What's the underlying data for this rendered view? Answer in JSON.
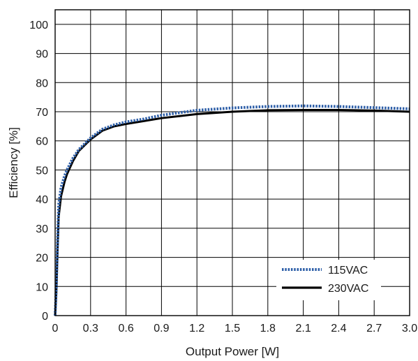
{
  "chart_data": {
    "type": "line",
    "xlabel": "Output Power [W]",
    "ylabel": "Efficiency [%]",
    "xlim": [
      0,
      3.0
    ],
    "ylim": [
      0,
      105
    ],
    "x_ticks": [
      "0",
      "0.3",
      "0.6",
      "0.9",
      "1.2",
      "1.5",
      "1.8",
      "2.1",
      "2.4",
      "2.7",
      "3.0"
    ],
    "y_ticks": [
      "0",
      "10",
      "20",
      "30",
      "40",
      "50",
      "60",
      "70",
      "80",
      "90",
      "100"
    ],
    "grid": true,
    "legend_position": "bottom-right",
    "series": [
      {
        "name": "115VAC",
        "color": "#2e5fa8",
        "style": "dotted",
        "points": [
          [
            0,
            0
          ],
          [
            0.01,
            10
          ],
          [
            0.02,
            25
          ],
          [
            0.03,
            38
          ],
          [
            0.05,
            44
          ],
          [
            0.08,
            48
          ],
          [
            0.1,
            50
          ],
          [
            0.15,
            54
          ],
          [
            0.2,
            57
          ],
          [
            0.3,
            61
          ],
          [
            0.4,
            64
          ],
          [
            0.5,
            65.5
          ],
          [
            0.6,
            66.5
          ],
          [
            0.75,
            67.5
          ],
          [
            0.9,
            68.8
          ],
          [
            1.2,
            70.5
          ],
          [
            1.5,
            71.3
          ],
          [
            1.8,
            71.8
          ],
          [
            2.1,
            72
          ],
          [
            2.4,
            71.8
          ],
          [
            2.7,
            71.4
          ],
          [
            3.0,
            71
          ]
        ]
      },
      {
        "name": "230VAC",
        "color": "#000000",
        "style": "solid",
        "points": [
          [
            0,
            0
          ],
          [
            0.01,
            8
          ],
          [
            0.02,
            22
          ],
          [
            0.03,
            34
          ],
          [
            0.05,
            41
          ],
          [
            0.08,
            46
          ],
          [
            0.1,
            48.5
          ],
          [
            0.15,
            53
          ],
          [
            0.2,
            56.5
          ],
          [
            0.3,
            60.5
          ],
          [
            0.4,
            63.5
          ],
          [
            0.5,
            65
          ],
          [
            0.6,
            65.8
          ],
          [
            0.75,
            66.8
          ],
          [
            0.9,
            67.8
          ],
          [
            1.2,
            69.2
          ],
          [
            1.5,
            70
          ],
          [
            1.8,
            70.5
          ],
          [
            2.1,
            70.6
          ],
          [
            2.4,
            70.6
          ],
          [
            2.7,
            70.4
          ],
          [
            3.0,
            70
          ]
        ]
      }
    ]
  }
}
